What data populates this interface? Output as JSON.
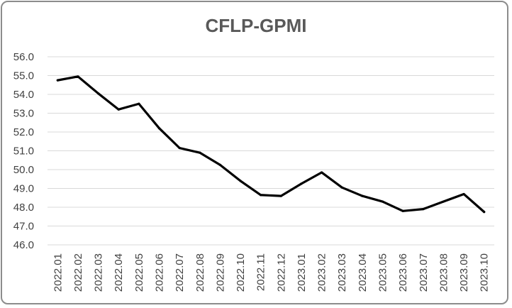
{
  "chart_data": {
    "type": "line",
    "title": "CFLP-GPMI",
    "xlabel": "",
    "ylabel": "",
    "ylim": [
      46.0,
      56.0
    ],
    "yticks": [
      "46.0",
      "47.0",
      "48.0",
      "49.0",
      "50.0",
      "51.0",
      "52.0",
      "53.0",
      "54.0",
      "55.0",
      "56.0"
    ],
    "grid": true,
    "legend": "none",
    "categories": [
      "2022.01",
      "2022.02",
      "2022.03",
      "2022.04",
      "2022.05",
      "2022.06",
      "2022.07",
      "2022.08",
      "2022.09",
      "2022.10",
      "2022.11",
      "2022.12",
      "2023.01",
      "2023.02",
      "2023.03",
      "2023.04",
      "2023.05",
      "2023.06",
      "2023.07",
      "2023.08",
      "2023.09",
      "2023.10"
    ],
    "series": [
      {
        "color": "#000000",
        "values": [
          54.75,
          54.95,
          54.05,
          53.2,
          53.5,
          52.2,
          51.15,
          50.9,
          50.25,
          49.4,
          48.65,
          48.6,
          49.25,
          49.85,
          49.05,
          48.6,
          48.3,
          47.8,
          47.9,
          48.3,
          48.7,
          47.75
        ]
      }
    ]
  }
}
